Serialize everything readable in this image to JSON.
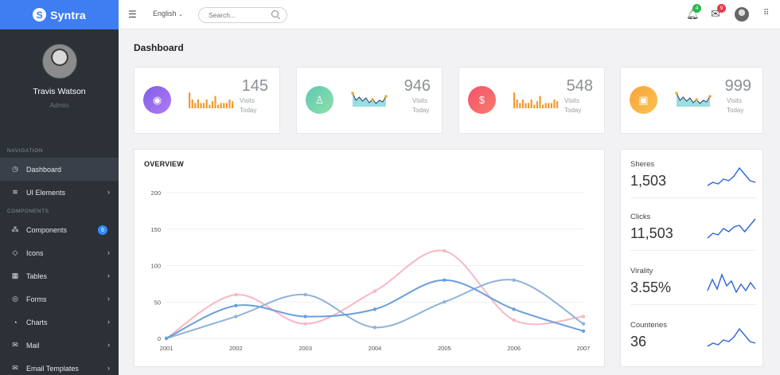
{
  "brand": {
    "name": "Syntra",
    "logo_letter": "S"
  },
  "profile": {
    "name": "Travis Watson",
    "role": "Admin"
  },
  "nav": {
    "section1": "NAVIGATION",
    "section2": "COMPONENTS",
    "items": [
      {
        "label": "Dashboard",
        "icon": "gauge-icon",
        "active": true
      },
      {
        "label": "UI Elements",
        "icon": "layers-icon",
        "chevron": true
      },
      {
        "label": "Components",
        "icon": "nodes-icon",
        "badge": "6"
      },
      {
        "label": "Icons",
        "icon": "diamond-icon",
        "chevron": true
      },
      {
        "label": "Tables",
        "icon": "table-icon",
        "chevron": true
      },
      {
        "label": "Forms",
        "icon": "lifebuoy-icon",
        "chevron": true
      },
      {
        "label": "Charts",
        "icon": "pie-chart-icon",
        "chevron": true
      },
      {
        "label": "Mail",
        "icon": "mail-icon",
        "chevron": true
      },
      {
        "label": "Email Templates",
        "icon": "envelope-open-icon",
        "chevron": true
      }
    ]
  },
  "topbar": {
    "language": "English",
    "search_placeholder": "Search...",
    "notifications_count": "4",
    "messages_count": "9",
    "colors": {
      "notif_badge": "#2db84d",
      "mail_badge": "#e8394a"
    }
  },
  "page_title": "Dashboard",
  "stats": [
    {
      "value": "145",
      "label1": "Visits",
      "label2": "Today",
      "icon": "eye-icon",
      "gradient": [
        "#7d5ee6",
        "#b27bf2"
      ],
      "spark": "bar"
    },
    {
      "value": "946",
      "label1": "Visits",
      "label2": "Today",
      "icon": "user-icon",
      "gradient": [
        "#5fc8b5",
        "#8ee0a8"
      ],
      "spark": "line"
    },
    {
      "value": "548",
      "label1": "Visits",
      "label2": "Today",
      "icon": "dollar-icon",
      "gradient": [
        "#f2516a",
        "#fb7d6d"
      ],
      "spark": "bar"
    },
    {
      "value": "999",
      "label1": "Visits",
      "label2": "Today",
      "icon": "wallet-icon",
      "gradient": [
        "#f7a43b",
        "#fbc24f"
      ],
      "spark": "line"
    }
  ],
  "overview": {
    "title": "OVERVIEW",
    "chart_data": {
      "type": "line",
      "categories": [
        "2001",
        "2002",
        "2003",
        "2004",
        "2005",
        "2006",
        "2007"
      ],
      "ylim": [
        0,
        200
      ],
      "yticks": [
        0,
        50,
        100,
        150,
        200
      ],
      "series": [
        {
          "values": [
            0,
            60,
            20,
            65,
            120,
            25,
            30
          ],
          "color": "#f7b8c4"
        },
        {
          "values": [
            0,
            30,
            60,
            15,
            50,
            80,
            20
          ],
          "color": "#8fb3d9"
        },
        {
          "values": [
            0,
            45,
            30,
            40,
            80,
            40,
            10
          ],
          "color": "#6a9fe0"
        }
      ]
    }
  },
  "social": [
    {
      "label": "Sheres",
      "value": "1,503"
    },
    {
      "label": "Clicks",
      "value": "11,503"
    },
    {
      "label": "Virality",
      "value": "3.55%"
    },
    {
      "label": "Counteries",
      "value": "36"
    }
  ]
}
